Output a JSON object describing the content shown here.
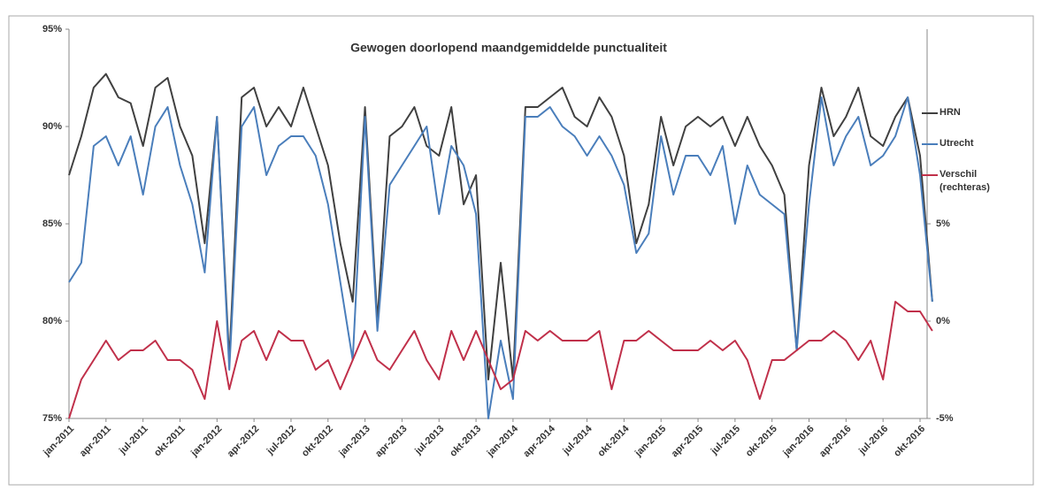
{
  "chart_data": {
    "type": "line",
    "title": "Gewogen doorlopend maandgemiddelde punctualiteit",
    "categories": [
      "jan-2011",
      null,
      null,
      "apr-2011",
      null,
      null,
      "jul-2011",
      null,
      null,
      "okt-2011",
      null,
      null,
      "jan-2012",
      null,
      null,
      "apr-2012",
      null,
      null,
      "jul-2012",
      null,
      null,
      "okt-2012",
      null,
      null,
      "jan-2013",
      null,
      null,
      "apr-2013",
      null,
      null,
      "jul-2013",
      null,
      null,
      "okt-2013",
      null,
      null,
      "jan-2014",
      null,
      null,
      "apr-2014",
      null,
      null,
      "jul-2014",
      null,
      null,
      "okt-2014",
      null,
      null,
      "jan-2015",
      null,
      null,
      "apr-2015",
      null,
      null,
      "jul-2015",
      null,
      null,
      "okt-2015",
      null,
      null,
      "jan-2016",
      null,
      null,
      "apr-2016",
      null,
      null,
      "jul-2016",
      null,
      null,
      "okt-2016",
      null
    ],
    "series": [
      {
        "name": "HRN",
        "color": "#404040",
        "values": [
          87.5,
          89.5,
          92,
          92.7,
          91.5,
          91.2,
          89,
          92,
          92.5,
          90,
          88.5,
          84,
          90.5,
          78,
          91.5,
          92,
          90,
          91,
          90,
          92,
          90,
          88,
          84,
          81,
          91,
          80,
          89.5,
          90,
          91,
          89,
          88.5,
          91,
          86,
          87.5,
          77,
          83,
          77,
          91,
          91,
          91.5,
          92,
          90.5,
          90,
          91.5,
          90.5,
          88.5,
          84,
          86,
          90.5,
          88,
          90,
          90.5,
          90,
          90.5,
          89,
          90.5,
          89,
          88,
          86.5,
          78.5,
          88,
          92,
          89.5,
          90.5,
          92,
          89.5,
          89,
          90.5,
          91.5,
          88.5,
          81
        ]
      },
      {
        "name": "Utrecht",
        "color": "#4a7ebb",
        "values": [
          82,
          83,
          89,
          89.5,
          88,
          89.5,
          86.5,
          90,
          91,
          88,
          86,
          82.5,
          90.5,
          77.5,
          90,
          91,
          87.5,
          89,
          89.5,
          89.5,
          88.5,
          86,
          82,
          78,
          90.5,
          79.5,
          87,
          88,
          89,
          90,
          85.5,
          89,
          88,
          85.5,
          75,
          79,
          76,
          90.5,
          90.5,
          91,
          90,
          89.5,
          88.5,
          89.5,
          88.5,
          87,
          83.5,
          84.5,
          89.5,
          86.5,
          88.5,
          88.5,
          87.5,
          89,
          85,
          88,
          86.5,
          86,
          85.5,
          78.5,
          86,
          91.5,
          88,
          89.5,
          90.5,
          88,
          88.5,
          89.5,
          91.5,
          87.5,
          81
        ]
      },
      {
        "name": "Verschil (rechteras)",
        "color": "#c0304a",
        "axis": "y2",
        "values": [
          -5,
          -3,
          -2,
          -1,
          -2,
          -1.5,
          -1.5,
          -1,
          -2,
          -2,
          -2.5,
          -4,
          0,
          -3.5,
          -1,
          -0.5,
          -2,
          -0.5,
          -1,
          -1,
          -2.5,
          -2,
          -3.5,
          -2,
          -0.5,
          -2,
          -2.5,
          -1.5,
          -0.5,
          -2,
          -3,
          -0.5,
          -2,
          -0.5,
          -2,
          -3.5,
          -3,
          -0.5,
          -1,
          -0.5,
          -1,
          -1,
          -1,
          -0.5,
          -3.5,
          -1,
          -1,
          -0.5,
          -1,
          -1.5,
          -1.5,
          -1.5,
          -1,
          -1.5,
          -1,
          -2,
          -4,
          -2,
          -2,
          -1.5,
          -1,
          -1,
          -0.5,
          -1,
          -2,
          -1,
          -3,
          1,
          0.5,
          0.5,
          -0.5
        ]
      }
    ],
    "ylim": [
      75,
      95
    ],
    "yticks": [
      {
        "value": 75,
        "label": "75%"
      },
      {
        "value": 80,
        "label": "80%"
      },
      {
        "value": 85,
        "label": "85%"
      },
      {
        "value": 90,
        "label": "90%"
      },
      {
        "value": 95,
        "label": "95%"
      }
    ],
    "y2lim": [
      -5,
      15
    ],
    "y2ticks": [
      {
        "value": -5,
        "label": "-5%"
      },
      {
        "value": 0,
        "label": "0%"
      },
      {
        "value": 5,
        "label": "5%"
      }
    ],
    "legend": "right"
  }
}
